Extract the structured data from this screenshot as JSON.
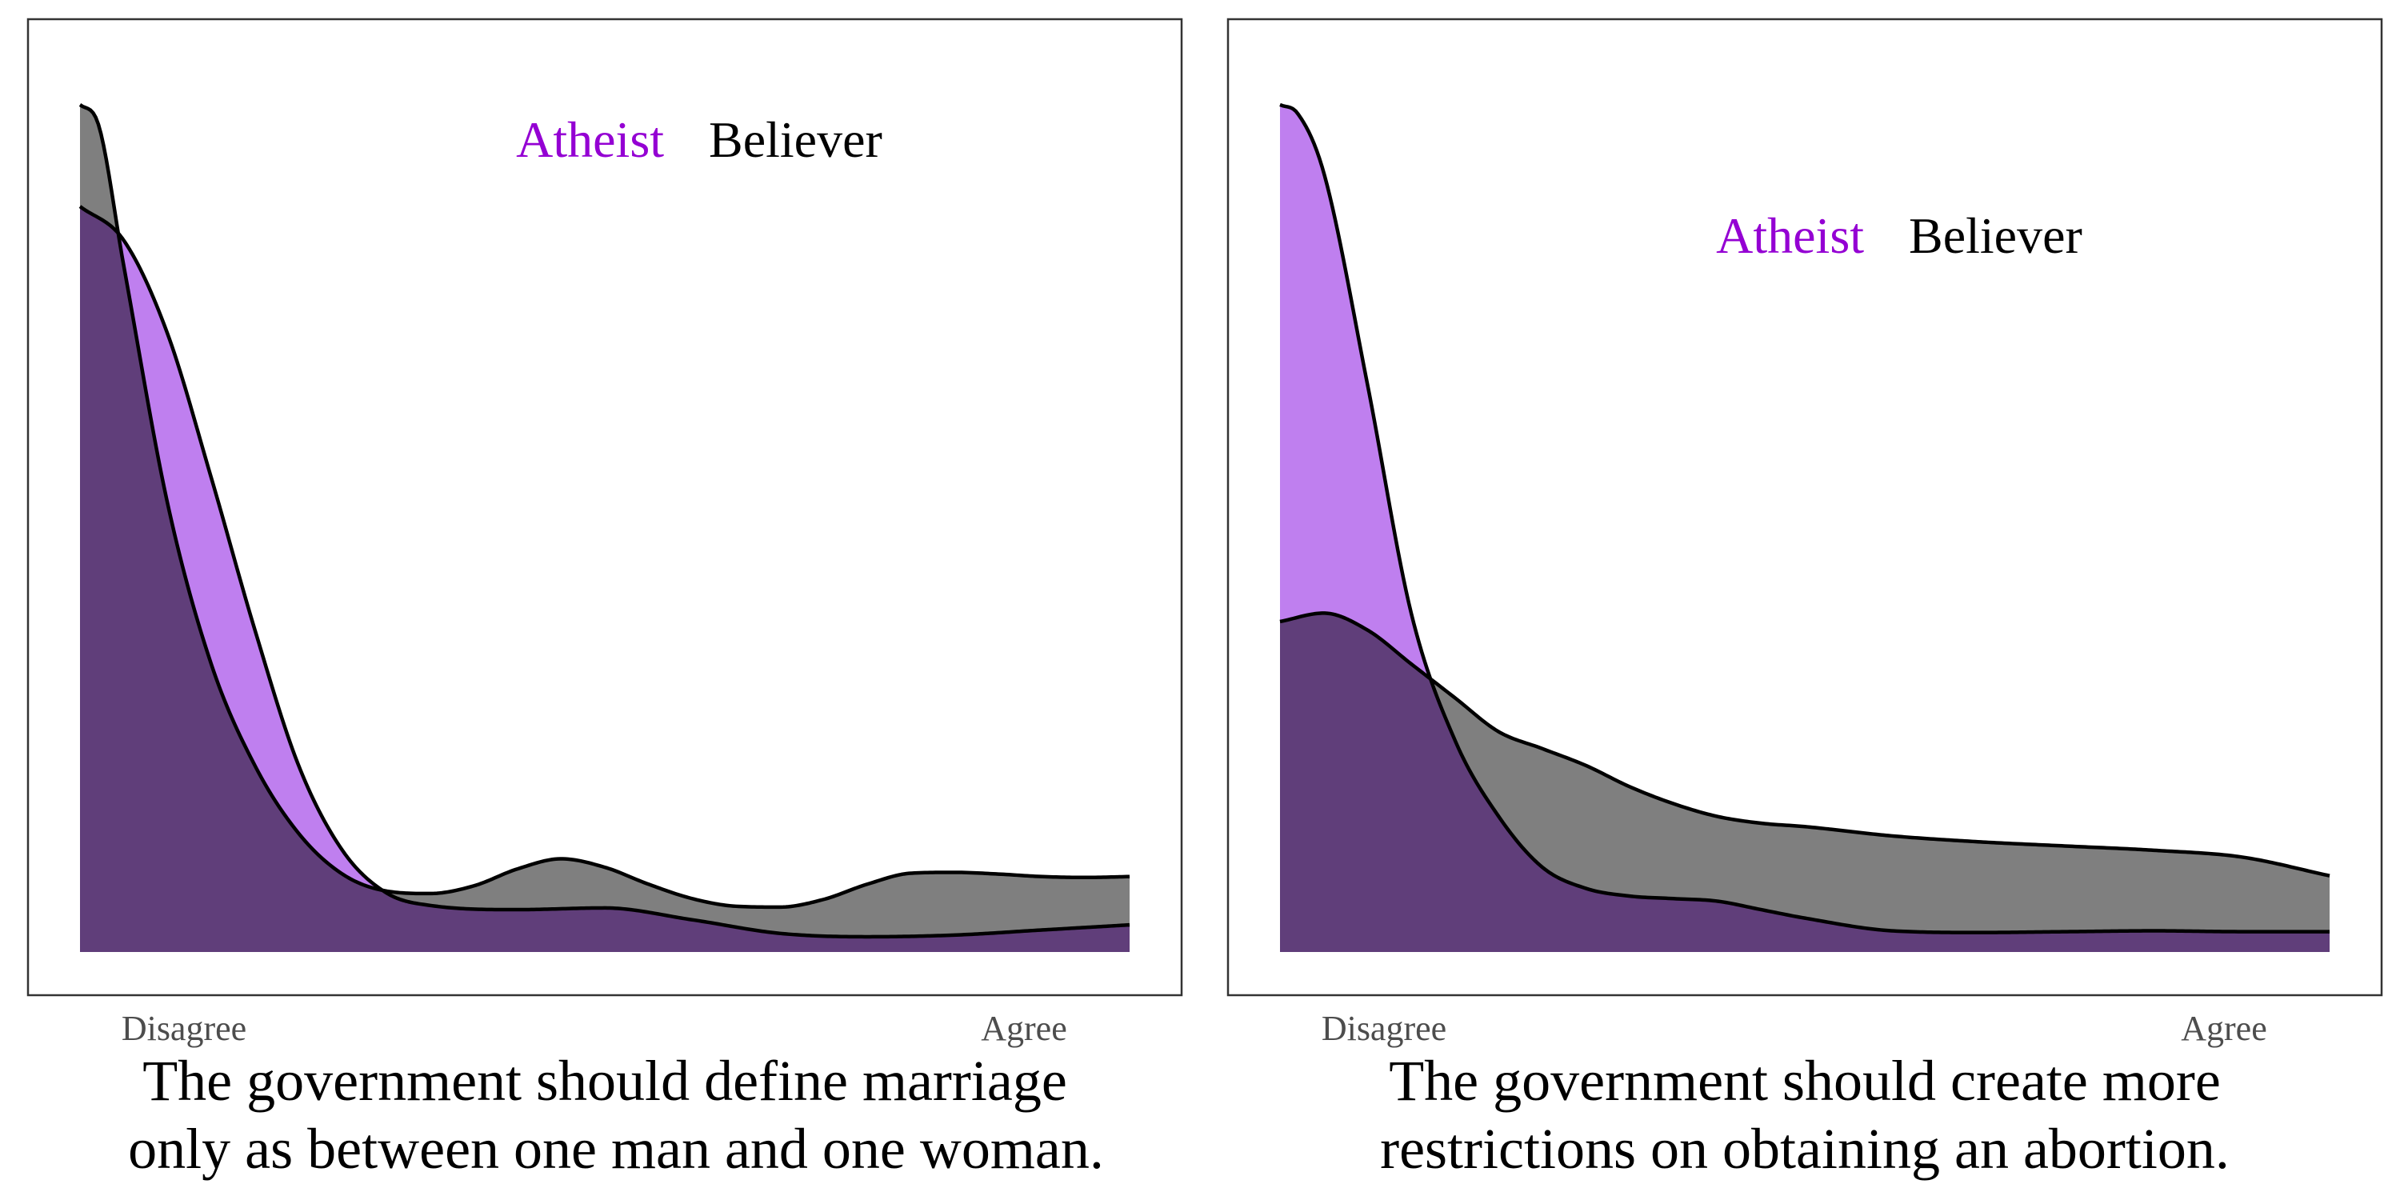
{
  "colors": {
    "atheist_fill": "#bf7fef",
    "believer_fill": "#7f7f7f",
    "overlap_fill": "#603e7a",
    "atheist_label": "#9400d3",
    "believer_label": "#000000",
    "outline": "#000000"
  },
  "chart_data": [
    {
      "type": "area",
      "title": "",
      "caption": [
        "The government should define marriage",
        "only as between one man and one woman."
      ],
      "xlabel": "",
      "ylabel": "",
      "x_tick_labels": [
        "Disagree",
        "Agree"
      ],
      "xlim": [
        1,
        7
      ],
      "ylim": [
        0,
        1.05
      ],
      "grid": false,
      "legend": {
        "placement": "top-center",
        "entries": [
          "Atheist",
          "Believer"
        ]
      },
      "series": [
        {
          "name": "Atheist",
          "x": [
            1.0,
            1.25,
            1.5,
            1.75,
            2.0,
            2.25,
            2.5,
            2.75,
            3.0,
            3.5,
            4.0,
            4.5,
            5.0,
            5.5,
            6.0,
            6.5,
            7.0
          ],
          "values": [
            0.88,
            0.84,
            0.73,
            0.56,
            0.38,
            0.22,
            0.12,
            0.07,
            0.055,
            0.05,
            0.052,
            0.038,
            0.022,
            0.018,
            0.02,
            0.026,
            0.032
          ]
        },
        {
          "name": "Believer",
          "x": [
            1.0,
            1.1,
            1.25,
            1.5,
            1.75,
            2.0,
            2.25,
            2.5,
            2.75,
            3.0,
            3.25,
            3.5,
            3.75,
            4.0,
            4.25,
            4.5,
            4.75,
            5.0,
            5.25,
            5.5,
            5.75,
            6.0,
            6.25,
            6.5,
            6.75,
            7.0
          ],
          "values": [
            1.0,
            0.98,
            0.81,
            0.53,
            0.34,
            0.22,
            0.14,
            0.092,
            0.072,
            0.069,
            0.078,
            0.098,
            0.11,
            0.1,
            0.08,
            0.063,
            0.054,
            0.053,
            0.062,
            0.08,
            0.093,
            0.094,
            0.092,
            0.089,
            0.088,
            0.089
          ]
        }
      ]
    },
    {
      "type": "area",
      "title": "",
      "caption": [
        "The government should create more",
        "restrictions on obtaining an abortion."
      ],
      "xlabel": "",
      "ylabel": "",
      "x_tick_labels": [
        "Disagree",
        "Agree"
      ],
      "xlim": [
        1,
        7
      ],
      "ylim": [
        0,
        1.05
      ],
      "grid": false,
      "legend": {
        "placement": "top-right",
        "entries": [
          "Atheist",
          "Believer"
        ]
      },
      "series": [
        {
          "name": "Atheist",
          "x": [
            1.0,
            1.1,
            1.25,
            1.5,
            1.75,
            2.0,
            2.25,
            2.5,
            2.75,
            3.0,
            3.25,
            3.5,
            3.75,
            4.0,
            4.5,
            5.0,
            5.5,
            6.0,
            6.5,
            7.0
          ],
          "values": [
            1.0,
            0.99,
            0.92,
            0.67,
            0.4,
            0.25,
            0.16,
            0.1,
            0.075,
            0.066,
            0.063,
            0.06,
            0.05,
            0.04,
            0.025,
            0.023,
            0.024,
            0.025,
            0.024,
            0.024
          ]
        },
        {
          "name": "Believer",
          "x": [
            1.0,
            1.25,
            1.5,
            1.75,
            2.0,
            2.25,
            2.5,
            2.75,
            3.0,
            3.25,
            3.5,
            3.75,
            4.0,
            4.5,
            5.0,
            5.5,
            6.0,
            6.5,
            7.0
          ],
          "values": [
            0.39,
            0.4,
            0.38,
            0.34,
            0.3,
            0.26,
            0.24,
            0.22,
            0.195,
            0.175,
            0.16,
            0.152,
            0.148,
            0.137,
            0.13,
            0.125,
            0.12,
            0.112,
            0.09
          ]
        }
      ]
    }
  ]
}
